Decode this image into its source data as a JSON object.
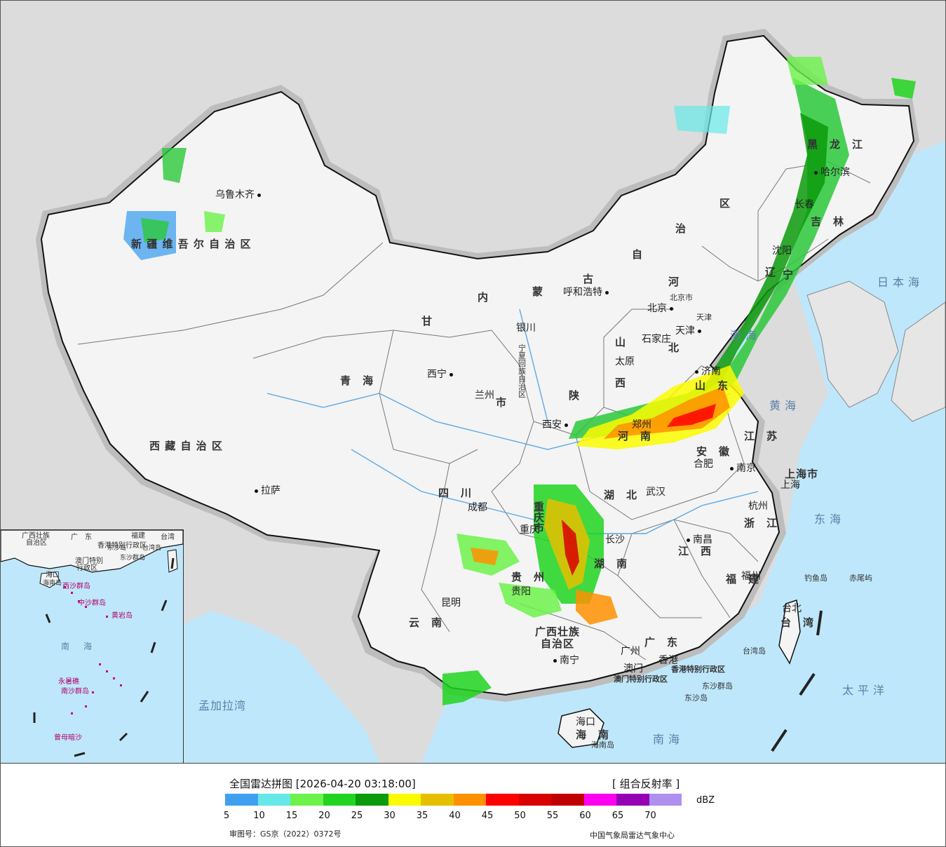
{
  "legend": {
    "title": "全国雷达拼图 [2026-04-20 03:18:00]",
    "product": "[ 组合反射率 ]",
    "unit": "dBZ",
    "ticks": [
      "5",
      "10",
      "15",
      "20",
      "25",
      "30",
      "35",
      "40",
      "45",
      "50",
      "55",
      "60",
      "65",
      "70"
    ],
    "colors": [
      "#3fa0f0",
      "#66e8e8",
      "#6cf24a",
      "#20d420",
      "#0a9a0a",
      "#fafa00",
      "#e6c000",
      "#ff9000",
      "#ff0000",
      "#d80000",
      "#c00000",
      "#ff00f0",
      "#9600b4",
      "#ad90f0"
    ],
    "approval": "审图号：GS京（2022）0372号",
    "agency": "中国气象局雷达气象中心"
  },
  "map": {
    "provinces": [
      {
        "name": "新 疆 维 吾 尔 自 治 区"
      },
      {
        "name": "西 藏 自 治 区"
      },
      {
        "name": "青　海"
      },
      {
        "name": "甘"
      },
      {
        "name": "内"
      },
      {
        "name": "蒙"
      },
      {
        "name": "古"
      },
      {
        "name": "自"
      },
      {
        "name": "治"
      },
      {
        "name": "区"
      },
      {
        "name": "黑　龙　江"
      },
      {
        "name": "吉　林"
      },
      {
        "name": "辽"
      },
      {
        "name": "宁"
      },
      {
        "name": "河"
      },
      {
        "name": "北"
      },
      {
        "name": "山"
      },
      {
        "name": "西"
      },
      {
        "name": "陕"
      },
      {
        "name": "宁夏回族自治区"
      },
      {
        "name": "四　川"
      },
      {
        "name": "重庆市"
      },
      {
        "name": "贵　州"
      },
      {
        "name": "云　南"
      },
      {
        "name": "广西壮族"
      },
      {
        "name": "自治区"
      },
      {
        "name": "广　东"
      },
      {
        "name": "湖　北"
      },
      {
        "name": "湖　南"
      },
      {
        "name": "江　西"
      },
      {
        "name": "福　建"
      },
      {
        "name": "浙　江"
      },
      {
        "name": "江　苏"
      },
      {
        "name": "安　徽"
      },
      {
        "name": "山　东"
      },
      {
        "name": "河　南"
      },
      {
        "name": "上海市"
      },
      {
        "name": "台　湾"
      },
      {
        "name": "海　南"
      },
      {
        "name": "市"
      }
    ],
    "cities": [
      {
        "name": "乌鲁木齐"
      },
      {
        "name": "拉萨"
      },
      {
        "name": "西宁"
      },
      {
        "name": "兰州"
      },
      {
        "name": "银川"
      },
      {
        "name": "呼和浩特"
      },
      {
        "name": "北京"
      },
      {
        "name": "北京市"
      },
      {
        "name": "天津"
      },
      {
        "name": "天津"
      },
      {
        "name": "石家庄"
      },
      {
        "name": "太原"
      },
      {
        "name": "济南"
      },
      {
        "name": "郑州"
      },
      {
        "name": "西安"
      },
      {
        "name": "合肥"
      },
      {
        "name": "南京"
      },
      {
        "name": "上海"
      },
      {
        "name": "杭州"
      },
      {
        "name": "武汉"
      },
      {
        "name": "成都"
      },
      {
        "name": "重庆"
      },
      {
        "name": "长沙"
      },
      {
        "name": "南昌"
      },
      {
        "name": "福州"
      },
      {
        "name": "台北"
      },
      {
        "name": "贵阳"
      },
      {
        "name": "昆明"
      },
      {
        "name": "南宁"
      },
      {
        "name": "广州"
      },
      {
        "name": "澳门"
      },
      {
        "name": "香港"
      },
      {
        "name": "海口"
      },
      {
        "name": "沈阳"
      },
      {
        "name": "长春"
      },
      {
        "name": "哈尔滨"
      }
    ],
    "seas": [
      {
        "name": "日本海"
      },
      {
        "name": "渤海"
      },
      {
        "name": "黄海"
      },
      {
        "name": "东海"
      },
      {
        "name": "太平洋"
      },
      {
        "name": "南海"
      },
      {
        "name": "孟加拉湾"
      }
    ],
    "islands": [
      {
        "name": "钓鱼岛"
      },
      {
        "name": "赤尾屿"
      },
      {
        "name": "台湾岛"
      },
      {
        "name": "东沙群岛"
      },
      {
        "name": "东沙岛"
      },
      {
        "name": "海南岛"
      },
      {
        "name": "香港特别行政区"
      },
      {
        "name": "澳门特别行政区"
      }
    ],
    "inset_labels": [
      {
        "name": "广西壮族"
      },
      {
        "name": "自治区"
      },
      {
        "name": "广　东"
      },
      {
        "name": "福建"
      },
      {
        "name": "台湾"
      },
      {
        "name": "香港特别行政区"
      },
      {
        "name": "澳门特别"
      },
      {
        "name": "行政区"
      },
      {
        "name": "海口"
      },
      {
        "name": "海南岛"
      },
      {
        "name": "西沙群岛"
      },
      {
        "name": "中沙群岛"
      },
      {
        "name": "黄岩岛"
      },
      {
        "name": "南　海"
      },
      {
        "name": "南沙群岛"
      },
      {
        "name": "永暑礁"
      },
      {
        "name": "曾母暗沙"
      },
      {
        "name": "东沙岛"
      },
      {
        "name": "台湾岛"
      },
      {
        "name": "东沙群岛"
      }
    ]
  }
}
